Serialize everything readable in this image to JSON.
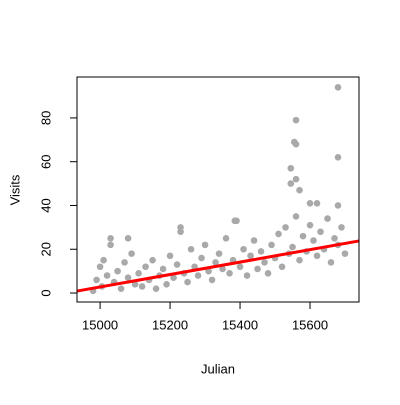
{
  "chart_data": {
    "type": "scatter",
    "x_label": "Julian",
    "y_label": "Visits",
    "xlim": [
      14934,
      15740
    ],
    "ylim": [
      -4.1,
      98.7
    ],
    "xticks": [
      15000,
      15200,
      15400,
      15600
    ],
    "yticks": [
      0,
      20,
      40,
      60,
      80
    ],
    "series": [
      {
        "type": "scatter",
        "color": "#a9a9a9",
        "x": [
          14980,
          14990,
          15000,
          15005,
          15010,
          15020,
          15030,
          15040,
          15050,
          15060,
          15070,
          15080,
          15090,
          15100,
          15110,
          15120,
          15130,
          15140,
          15150,
          15160,
          15170,
          15180,
          15190,
          15200,
          15210,
          15220,
          15230,
          15240,
          15250,
          15260,
          15270,
          15280,
          15290,
          15300,
          15310,
          15320,
          15330,
          15340,
          15350,
          15360,
          15370,
          15380,
          15390,
          15400,
          15410,
          15420,
          15430,
          15440,
          15450,
          15460,
          15470,
          15480,
          15490,
          15500,
          15510,
          15520,
          15530,
          15540,
          15550,
          15560,
          15570,
          15580,
          15590,
          15600,
          15610,
          15620,
          15630,
          15640,
          15650,
          15660,
          15670,
          15680,
          15690,
          15700,
          15680,
          15560,
          15555,
          15560,
          15680,
          15545,
          15560,
          15545,
          15570,
          15600,
          15620,
          15680,
          15385,
          15230,
          15030,
          15080
        ],
        "values": [
          1,
          6,
          12,
          3,
          15,
          8,
          22,
          5,
          10,
          2,
          14,
          7,
          18,
          4,
          9,
          3,
          12,
          6,
          15,
          2,
          8,
          11,
          4,
          17,
          7,
          13,
          28,
          9,
          5,
          20,
          12,
          8,
          16,
          22,
          10,
          6,
          14,
          18,
          11,
          25,
          9,
          15,
          33,
          12,
          20,
          8,
          17,
          24,
          11,
          19,
          14,
          9,
          22,
          16,
          27,
          12,
          30,
          18,
          21,
          35,
          15,
          26,
          19,
          31,
          24,
          17,
          28,
          20,
          34,
          14,
          25,
          22,
          30,
          18,
          94,
          79,
          69,
          68,
          62,
          57,
          52,
          50,
          47,
          41,
          41,
          40,
          33,
          30,
          25,
          25
        ]
      },
      {
        "type": "line",
        "color": "#ff0000",
        "x": [
          14934,
          15740
        ],
        "values": [
          0.9,
          23.8
        ]
      }
    ]
  }
}
